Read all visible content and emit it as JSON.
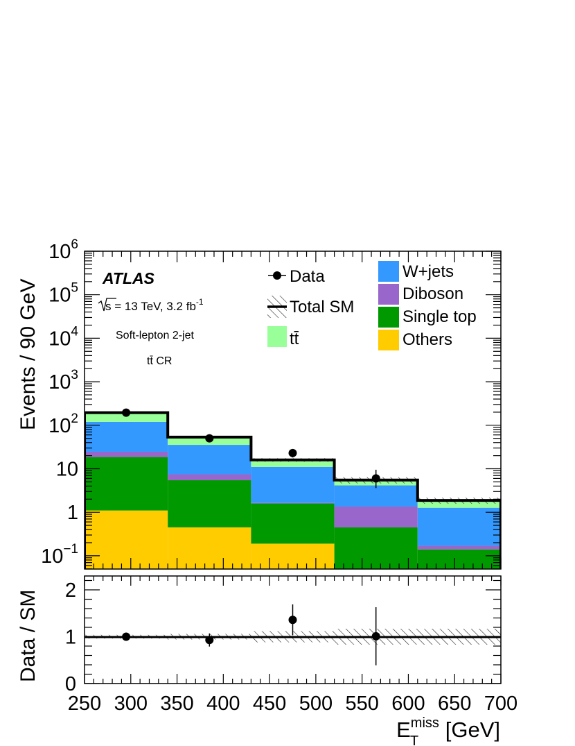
{
  "chart_data": [
    {
      "panel": "main",
      "type": "bar",
      "stacked": true,
      "log_scale_y": true,
      "x_edges": [
        250,
        340,
        430,
        520,
        610,
        700
      ],
      "xlim": [
        250,
        700
      ],
      "ylim": [
        0.06,
        1000000
      ],
      "ylabel": "Events / 90 GeV",
      "ytick_labels": [
        {
          "value": 0.1,
          "base": "10",
          "exp": "−1"
        },
        {
          "value": 1,
          "base": "1",
          "exp": ""
        },
        {
          "value": 10,
          "base": "10",
          "exp": ""
        },
        {
          "value": 100,
          "base": "10",
          "exp": "2"
        },
        {
          "value": 1000,
          "base": "10",
          "exp": "3"
        },
        {
          "value": 10000,
          "base": "10",
          "exp": "4"
        },
        {
          "value": 100000,
          "base": "10",
          "exp": "5"
        },
        {
          "value": 1000000,
          "base": "10",
          "exp": "6"
        }
      ],
      "series": [
        {
          "name": "Others",
          "color": "#ffcc00",
          "values": [
            1.1,
            0.45,
            0.19,
            0,
            0
          ]
        },
        {
          "name": "Single top",
          "color": "#009900",
          "values": [
            17.5,
            5.0,
            1.4,
            0.45,
            0.14
          ]
        },
        {
          "name": "Diboson",
          "color": "#9966cc",
          "values": [
            6.0,
            2.0,
            0.05,
            0.9,
            0.03
          ]
        },
        {
          "name": "W+jets",
          "color": "#3399ff",
          "values": [
            95,
            28,
            9.4,
            2.8,
            1.1
          ]
        },
        {
          "name": "t t̄",
          "color": "#99ff99",
          "values": [
            75,
            18,
            5.0,
            1.3,
            0.6
          ]
        }
      ],
      "total_sm": [
        195,
        53.5,
        16.0,
        5.5,
        1.87
      ],
      "total_sm_unc": [
        8,
        3,
        1.5,
        0.9,
        0.3
      ],
      "data_points": {
        "x": [
          295,
          385,
          475,
          565
        ],
        "y": [
          195,
          50,
          23,
          6
        ],
        "err_up": [
          14,
          7.5,
          5.5,
          3.5
        ],
        "err_down": [
          14,
          7.0,
          4.8,
          2.4
        ]
      }
    },
    {
      "panel": "ratio",
      "type": "scatter",
      "x_edges": [
        250,
        340,
        430,
        520,
        610,
        700
      ],
      "xlim": [
        250,
        700
      ],
      "ylim": [
        0,
        2.5
      ],
      "ylabel": "Data / SM",
      "xtick_labels": [
        "250",
        "300",
        "350",
        "400",
        "450",
        "500",
        "550",
        "600",
        "650",
        "700"
      ],
      "ytick_labels": [
        "0",
        "1",
        "2"
      ],
      "unc_band": [
        0.04,
        0.06,
        0.12,
        0.17,
        0.17
      ],
      "ratio_points": {
        "x": [
          295,
          385,
          475,
          565
        ],
        "y": [
          1.0,
          0.93,
          1.36,
          1.01
        ],
        "err": [
          0.07,
          0.14,
          0.33,
          0.62
        ]
      }
    }
  ],
  "legend": {
    "data_label": "Data",
    "total_sm_label": "Total SM",
    "ttbar_label": "tt̄",
    "wjets_label": "W+jets",
    "diboson_label": "Diboson",
    "singletop_label": "Single top",
    "others_label": "Others"
  },
  "annotations": {
    "atlas": "ATLAS",
    "energy": "s = 13 TeV, 3.2 fb",
    "energy_sup": "-1",
    "selection": "Soft-lepton 2-jet",
    "region": "tt̄ CR"
  },
  "xaxis": {
    "label_main": "E",
    "label_sup": "miss",
    "label_sub": "T",
    "label_unit": " [GeV]"
  }
}
